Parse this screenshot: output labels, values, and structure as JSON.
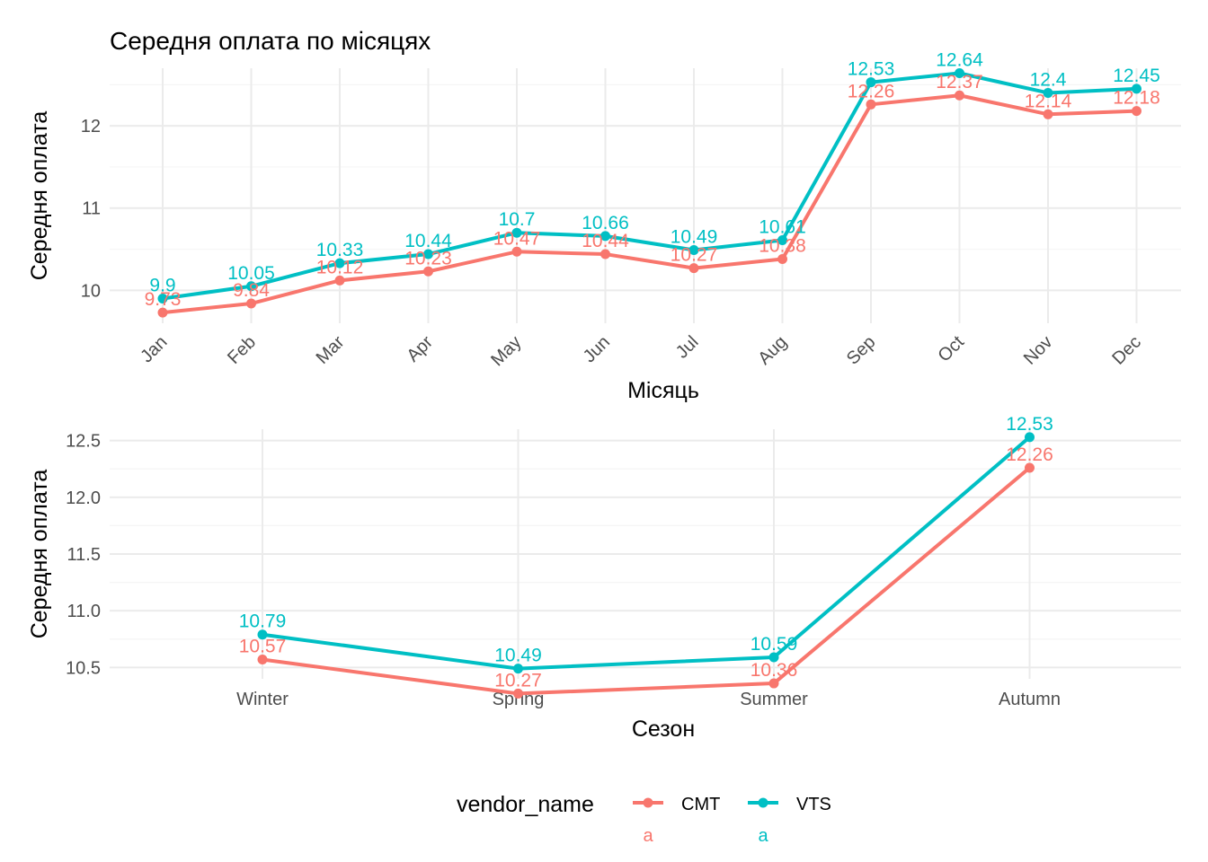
{
  "title": "Середня оплата по місяцях",
  "colors": {
    "CMT": "#F8766D",
    "VTS": "#00BFC4"
  },
  "legend": {
    "title": "vendor_name",
    "entries": [
      "CMT",
      "VTS"
    ],
    "key_label": "a",
    "position": "bottom"
  },
  "chart_data": [
    {
      "type": "line",
      "xlabel": "Місяць",
      "ylabel": "Середня оплата",
      "categories": [
        "Jan",
        "Feb",
        "Mar",
        "Apr",
        "May",
        "Jun",
        "Jul",
        "Aug",
        "Sep",
        "Oct",
        "Nov",
        "Dec"
      ],
      "yticks": [
        10,
        11,
        12
      ],
      "ylim": [
        9.6,
        12.7
      ],
      "grid": true,
      "series": [
        {
          "name": "CMT",
          "values": [
            9.73,
            9.84,
            10.12,
            10.23,
            10.47,
            10.44,
            10.27,
            10.38,
            12.26,
            12.37,
            12.14,
            12.18
          ]
        },
        {
          "name": "VTS",
          "values": [
            9.9,
            10.05,
            10.33,
            10.44,
            10.7,
            10.66,
            10.49,
            10.61,
            12.53,
            12.64,
            12.4,
            12.45
          ]
        }
      ]
    },
    {
      "type": "line",
      "xlabel": "Сезон",
      "ylabel": "Середня оплата",
      "categories": [
        "Winter",
        "Spring",
        "Summer",
        "Autumn"
      ],
      "yticks": [
        10.5,
        11.0,
        11.5,
        12.0,
        12.5
      ],
      "ylim": [
        10.4,
        12.6
      ],
      "grid": true,
      "series": [
        {
          "name": "CMT",
          "values": [
            10.57,
            10.27,
            10.36,
            12.26
          ]
        },
        {
          "name": "VTS",
          "values": [
            10.79,
            10.49,
            10.59,
            12.53
          ]
        }
      ]
    }
  ]
}
